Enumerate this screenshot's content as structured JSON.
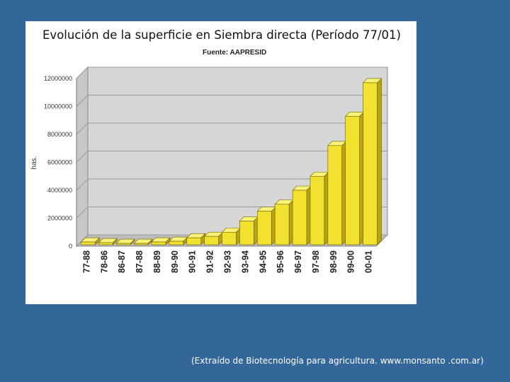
{
  "slide": {
    "caption": "(Extraído de Biotecnología para agricultura. www.monsanto .com.ar)",
    "background_color": "#336699"
  },
  "chart_data": {
    "type": "bar",
    "title": "Evolución de la superficie en Siembra directa (Período 77/01)",
    "source": "Fuente: AAPRESID",
    "ylabel": "has.",
    "xlabel": "",
    "ylim": [
      0,
      12000000
    ],
    "yticks": [
      0,
      2000000,
      4000000,
      6000000,
      8000000,
      10000000,
      12000000
    ],
    "ytick_labels": [
      "0",
      "2000000",
      "4000000",
      "6000000",
      "8000000",
      "10000000",
      "12000000"
    ],
    "categories": [
      "77-88",
      "78-86",
      "86-87",
      "87-88",
      "88-89",
      "89-90",
      "90-91",
      "91-92",
      "92-93",
      "93-94",
      "94-95",
      "95-96",
      "96-97",
      "97-98",
      "98-99",
      "99-00",
      "00-01"
    ],
    "values": [
      300000,
      250000,
      200000,
      200000,
      300000,
      350000,
      600000,
      700000,
      1000000,
      1800000,
      2500000,
      3000000,
      4000000,
      5000000,
      7200000,
      9300000,
      11700000
    ],
    "grid": true,
    "bar_color": "#f2e12e"
  }
}
